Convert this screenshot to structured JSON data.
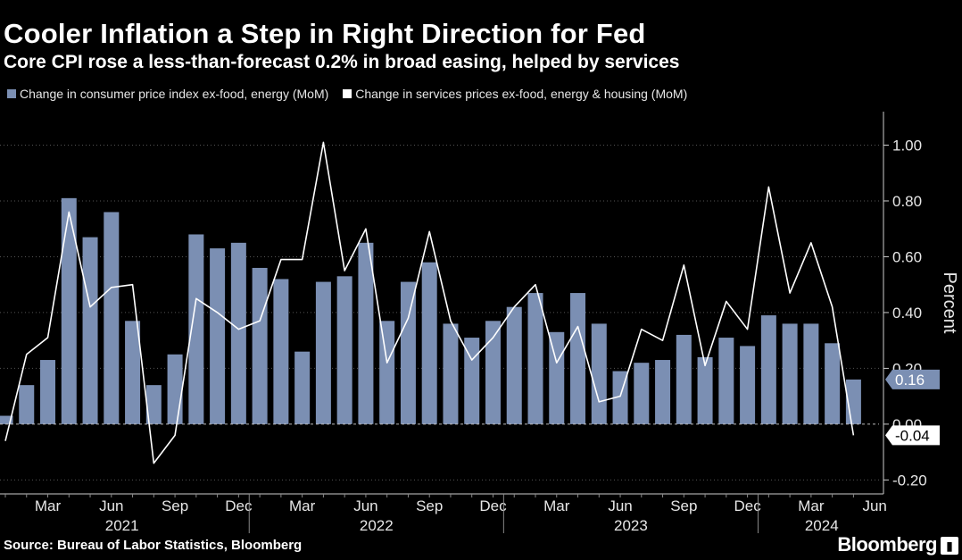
{
  "header": {
    "title": "Cooler Inflation a Step in Right Direction for Fed",
    "subtitle": "Core CPI rose a less-than-forecast 0.2% in broad easing, helped by services"
  },
  "footer": {
    "source": "Source: Bureau of Labor Statistics, Bloomberg",
    "brand": "Bloomberg"
  },
  "colors": {
    "bar": "#7b8fb3",
    "line": "#ffffff",
    "background": "#000000",
    "axis": "#cccccc"
  },
  "chart_data": {
    "type": "bar",
    "title": "Cooler Inflation a Step in Right Direction for Fed",
    "subtitle": "Core CPI rose a less-than-forecast 0.2% in broad easing, helped by services",
    "ylabel": "Percent",
    "ylim": [
      -0.25,
      1.12
    ],
    "yticks": [
      -0.2,
      0,
      0.2,
      0.4,
      0.6,
      0.8,
      1.0
    ],
    "ytick_labels": [
      "-0.20",
      "0.00",
      "0.20",
      "0.40",
      "0.60",
      "0.80",
      "1.00"
    ],
    "legend": [
      "Change in consumer price index ex-food, energy (MoM)",
      "Change in services prices ex-food, energy & housing (MoM)"
    ],
    "legend_position": "top-left",
    "x_month_labels": [
      {
        "i": 2,
        "label": "Mar"
      },
      {
        "i": 5,
        "label": "Jun"
      },
      {
        "i": 8,
        "label": "Sep"
      },
      {
        "i": 11,
        "label": "Dec"
      },
      {
        "i": 14,
        "label": "Mar"
      },
      {
        "i": 17,
        "label": "Jun"
      },
      {
        "i": 20,
        "label": "Sep"
      },
      {
        "i": 23,
        "label": "Dec"
      },
      {
        "i": 26,
        "label": "Mar"
      },
      {
        "i": 29,
        "label": "Jun"
      },
      {
        "i": 32,
        "label": "Sep"
      },
      {
        "i": 35,
        "label": "Dec"
      },
      {
        "i": 38,
        "label": "Mar"
      },
      {
        "i": 41,
        "label": "Jun"
      }
    ],
    "x_year_labels": [
      {
        "i": 5.5,
        "label": "2021"
      },
      {
        "i": 17.5,
        "label": "2022"
      },
      {
        "i": 29.5,
        "label": "2023"
      },
      {
        "i": 38.5,
        "label": "2024"
      }
    ],
    "year_separators": [
      11.5,
      23.5,
      35.5
    ],
    "series": [
      {
        "name": "Change in consumer price index ex-food, energy (MoM)",
        "type": "bar",
        "values": [
          0.03,
          0.14,
          0.23,
          0.81,
          0.67,
          0.76,
          0.37,
          0.14,
          0.25,
          0.68,
          0.63,
          0.65,
          0.56,
          0.52,
          0.26,
          0.51,
          0.53,
          0.65,
          0.37,
          0.51,
          0.58,
          0.36,
          0.31,
          0.37,
          0.42,
          0.47,
          0.33,
          0.47,
          0.36,
          0.19,
          0.22,
          0.23,
          0.32,
          0.24,
          0.31,
          0.28,
          0.39,
          0.36,
          0.36,
          0.29,
          0.16
        ]
      },
      {
        "name": "Change in services prices ex-food, energy & housing (MoM)",
        "type": "line",
        "values": [
          -0.06,
          0.25,
          0.31,
          0.76,
          0.42,
          0.49,
          0.5,
          -0.14,
          -0.04,
          0.45,
          0.4,
          0.34,
          0.37,
          0.59,
          0.59,
          1.01,
          0.55,
          0.7,
          0.22,
          0.38,
          0.69,
          0.37,
          0.23,
          0.31,
          0.42,
          0.5,
          0.22,
          0.35,
          0.08,
          0.1,
          0.34,
          0.3,
          0.57,
          0.21,
          0.44,
          0.34,
          0.85,
          0.47,
          0.65,
          0.42,
          -0.04
        ]
      }
    ],
    "last_value_labels": [
      {
        "series": 0,
        "label": "0.16"
      },
      {
        "series": 1,
        "label": "-0.04"
      }
    ]
  }
}
